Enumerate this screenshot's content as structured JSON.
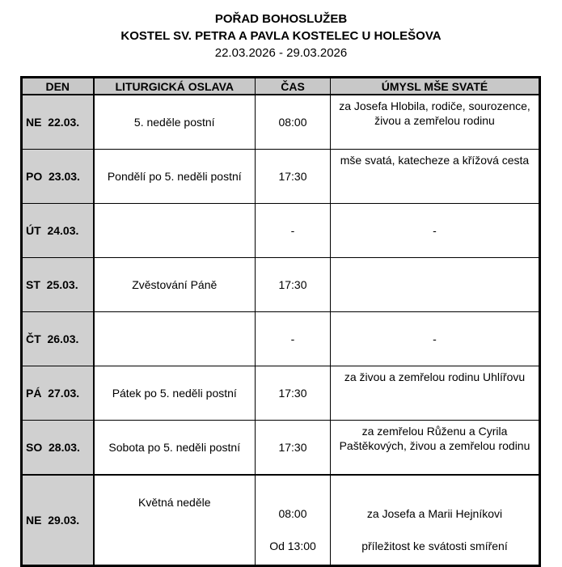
{
  "header": {
    "title": "POŘAD BOHOSLUŽEB",
    "church": "KOSTEL SV. PETRA A PAVLA KOSTELEC U HOLEŠOVA",
    "date_range": "22.03.2026 - 29.03.2026"
  },
  "table": {
    "columns": [
      "DEN",
      "LITURGICKÁ OSLAVA",
      "ČAS",
      "ÚMYSL MŠE SVATÉ"
    ],
    "rows": [
      {
        "day": "NE  22.03.",
        "celebration": "5. neděle postní",
        "time": "08:00",
        "intention": "za Josefa Hlobila, rodiče, sourozence, živou a zemřelou rodinu"
      },
      {
        "day": "PO  23.03.",
        "celebration": "Pondělí po 5. neděli postní",
        "time": "17:30",
        "intention": "mše svatá, katecheze a křížová cesta"
      },
      {
        "day": "ÚT  24.03.",
        "celebration": "",
        "time": "-",
        "intention": "-"
      },
      {
        "day": "ST  25.03.",
        "celebration": "Zvěstování Páně",
        "time": "17:30",
        "intention": ""
      },
      {
        "day": "ČT  26.03.",
        "celebration": "",
        "time": "-",
        "intention": "-"
      },
      {
        "day": "PÁ  27.03.",
        "celebration": "Pátek po 5. neděli postní",
        "time": "17:30",
        "intention": "za živou a zemřelou rodinu Uhlířovu"
      },
      {
        "day": "SO  28.03.",
        "celebration": "Sobota po 5. neděli postní",
        "time": "17:30",
        "intention": "za zemřelou Růženu a Cyrila Paštěkových, živou a zemřelou rodinu"
      }
    ],
    "last_row": {
      "day": "NE  29.03.",
      "celebration": "Květná neděle",
      "time_1": "08:00",
      "time_2": "Od 13:00",
      "intention_1": "za Josefa a Marii Hejníkovi",
      "intention_2": "příležitost ke svátosti smíření"
    }
  }
}
